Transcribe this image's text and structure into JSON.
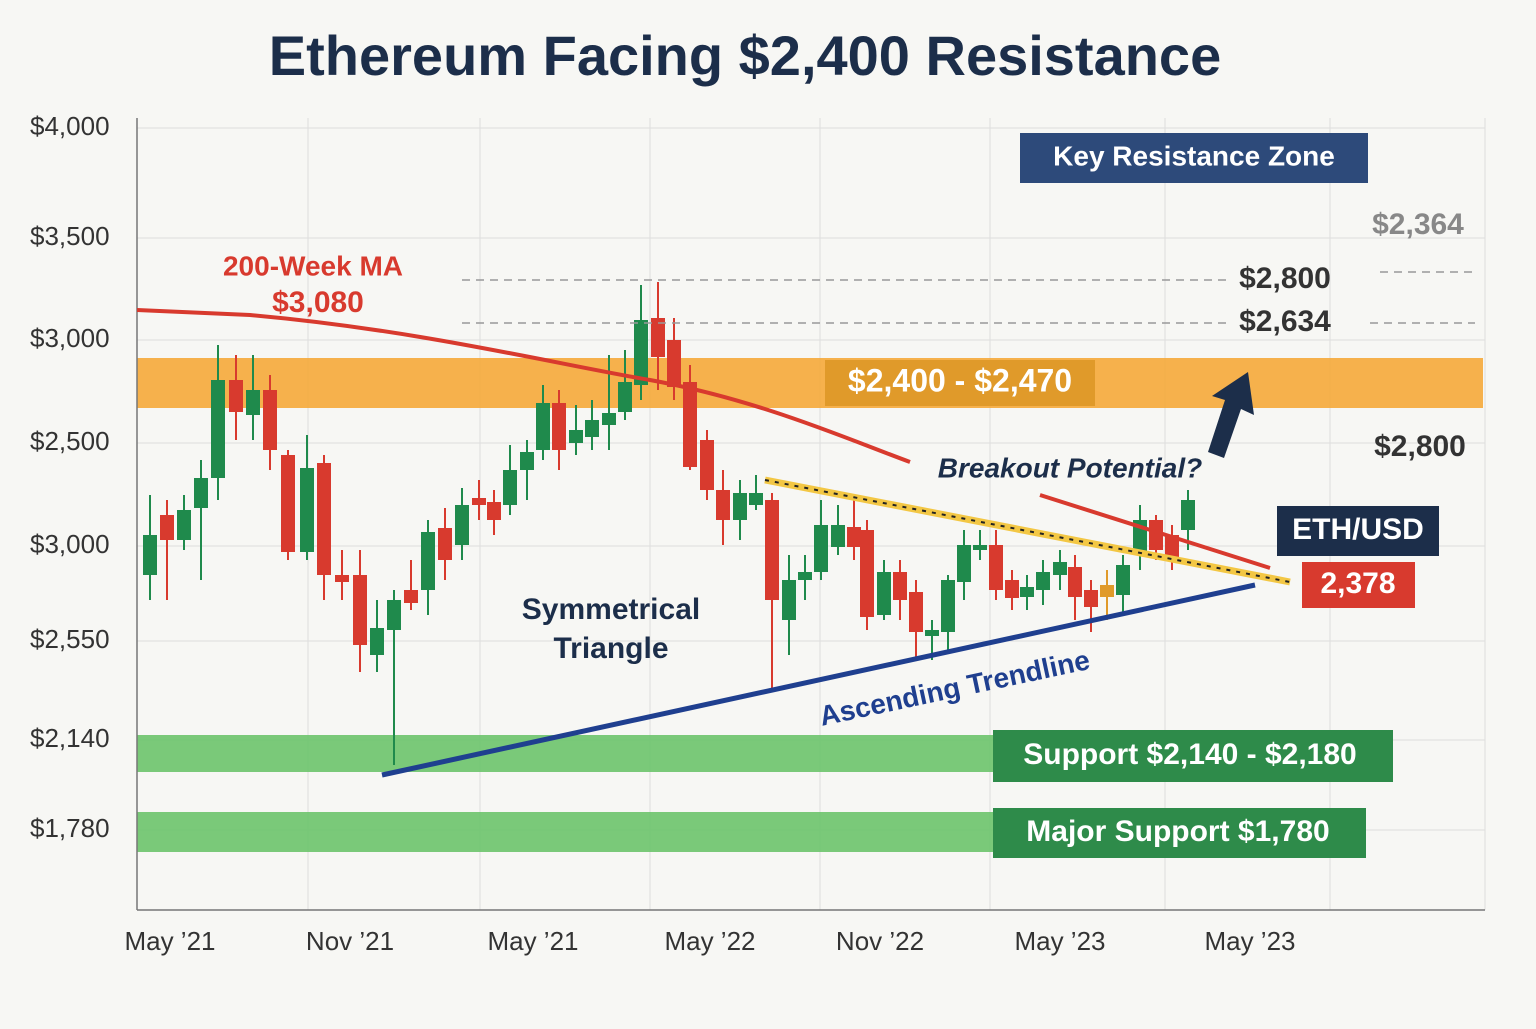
{
  "title": "Ethereum Facing $2,400 Resistance",
  "y_axis_labels": [
    "$4,000",
    "$3,500",
    "$3,000",
    "$2,500",
    "$3,000",
    "$2,550",
    "$2,140",
    "$1,780"
  ],
  "x_axis_labels": [
    "May ’21",
    "Nov ’21",
    "May ’21",
    "May ’22",
    "Nov ’22",
    "May ’23",
    "May ’23"
  ],
  "annotations": {
    "key_resistance": "Key Resistance Zone",
    "level_top": "$2,364",
    "level_a": "$2,800",
    "level_b": "$2,634",
    "ma_name": "200-Week MA",
    "ma_value": "$3,080",
    "resistance_band": "$2,400 - $2,470",
    "level_right": "$2,800",
    "breakout": "Breakout Potential?",
    "pair": "ETH/USD",
    "price": "2,378",
    "pattern_line1": "Symmetrical",
    "pattern_line2": "Triangle",
    "trendline": "Ascending Trendline",
    "support": "Support $2,140 - $2,180",
    "major_support": "Major Support $1,780"
  }
}
